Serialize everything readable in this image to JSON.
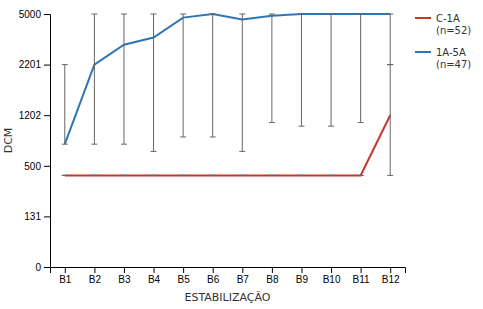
{
  "chart_data": {
    "type": "line",
    "categories": [
      "B1",
      "B2",
      "B3",
      "B4",
      "B5",
      "B6",
      "B7",
      "B8",
      "B9",
      "B10",
      "B11",
      "B12"
    ],
    "series": [
      {
        "name": "C-1A\n(n=52)",
        "color": "#C0392B",
        "values": [
          430,
          430,
          430,
          430,
          430,
          430,
          430,
          430,
          430,
          430,
          430,
          1202
        ],
        "min": [
          430,
          430,
          430,
          430,
          430,
          430,
          430,
          430,
          430,
          430,
          430,
          430
        ],
        "max": [
          430,
          430,
          430,
          430,
          430,
          430,
          430,
          430,
          430,
          430,
          430,
          2201
        ]
      },
      {
        "name": "1A-5A\n(n=47)",
        "color": "#2E75B6",
        "values": [
          800,
          2201,
          3300,
          3700,
          4800,
          5000,
          4700,
          4900,
          5000,
          5000,
          5000,
          5000
        ],
        "min": [
          800,
          800,
          800,
          700,
          900,
          900,
          700,
          1100,
          1050,
          1050,
          1100,
          2200
        ],
        "max": [
          2201,
          5000,
          5000,
          5000,
          5000,
          5000,
          5000,
          5000,
          5000,
          5000,
          5000,
          5000
        ]
      }
    ],
    "xlabel": "ESTABILIZAÇÃO",
    "ylabel": "DCM",
    "ylim": [
      0,
      5000
    ],
    "yticks": [
      0,
      131,
      500,
      1202,
      2201,
      5000
    ],
    "grid": false,
    "legend": "upper right"
  }
}
